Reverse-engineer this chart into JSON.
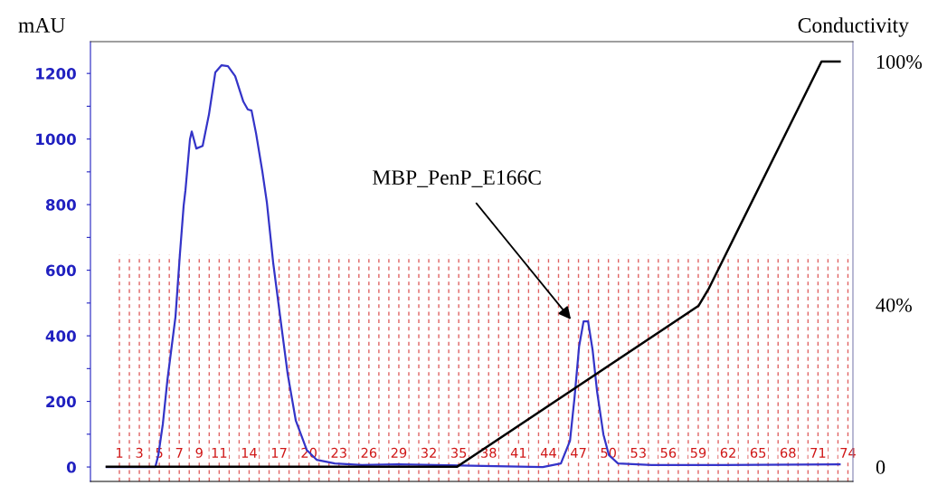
{
  "chart_data": {
    "type": "line",
    "ylabel": "mAU",
    "y2label": "Conductivity",
    "xlim": [
      -1.9,
      74.5
    ],
    "ylim": [
      -44,
      1297
    ],
    "yticks": [
      0,
      {
        "value": 100,
        "label": null
      },
      200,
      {
        "value": 300,
        "label": null
      },
      400,
      {
        "value": 500,
        "label": null
      },
      600,
      {
        "value": 700,
        "label": null
      },
      800,
      {
        "value": 900,
        "label": null
      },
      1000,
      {
        "value": 1100,
        "label": null
      },
      1200
    ],
    "y2lim": [
      -3.6,
      104.9
    ],
    "y2ticks": [
      0,
      {
        "value": 40,
        "label": "40%"
      },
      {
        "value": 100,
        "label": "100%"
      }
    ],
    "tick_labels": "y",
    "grid": false,
    "legend": false,
    "marker": "none",
    "line_style": "solid",
    "series": [
      {
        "color": "#3434c8",
        "x": [
          -0.27,
          4.6,
          4.9,
          5.35,
          5.81,
          6.62,
          7.07,
          7.44,
          7.62,
          8.07,
          8.25,
          8.71,
          9.34,
          9.98,
          10.61,
          11.24,
          11.88,
          12.6,
          13.42,
          13.87,
          14.24,
          14.69,
          15.32,
          15.78,
          16.41,
          17.23,
          17.86,
          18.68,
          19.77,
          20.76,
          22.58,
          25.3,
          28.92,
          32.55,
          43.43,
          45.24,
          46.15,
          46.6,
          47.06,
          47.51,
          47.96,
          48.42,
          48.87,
          49.5,
          50.05,
          50.96,
          54.31,
          61.56,
          73.17
        ],
        "values": [
          0,
          0,
          36,
          130,
          265,
          458,
          651,
          797,
          844,
          999,
          1023,
          971,
          979,
          1076,
          1203,
          1225,
          1222,
          1192,
          1114,
          1090,
          1087,
          1018,
          902,
          806,
          623,
          430,
          284,
          141,
          52,
          22,
          11,
          6,
          8,
          6,
          0,
          11,
          80,
          210,
          367,
          444,
          444,
          356,
          229,
          99,
          36,
          11,
          6,
          6,
          8
        ]
      },
      {
        "color": "#000000",
        "axis": "y2",
        "x": [
          -0.27,
          34.82,
          59.02,
          60.02,
          71.35,
          73.17
        ],
        "values": [
          0,
          0,
          39.7,
          43.8,
          100,
          100
        ]
      }
    ],
    "annotations": [
      {
        "text": "MBP_PenP_E166C",
        "x": 46.4,
        "y": 444
      }
    ],
    "ref_lines": [
      {
        "axis": "x",
        "value": 1,
        "label": "1",
        "color": "#e06464",
        "line_style": "dashed"
      },
      {
        "axis": "x",
        "value": 2,
        "label": null,
        "color": "#e06464",
        "line_style": "dashed"
      },
      {
        "axis": "x",
        "value": 3,
        "label": "3",
        "color": "#e06464",
        "line_style": "dashed"
      },
      {
        "axis": "x",
        "value": 4,
        "label": null,
        "color": "#e06464",
        "line_style": "dashed"
      },
      {
        "axis": "x",
        "value": 5,
        "label": "5",
        "color": "#e06464",
        "line_style": "dashed"
      },
      {
        "axis": "x",
        "value": 6,
        "label": null,
        "color": "#e06464",
        "line_style": "dashed"
      },
      {
        "axis": "x",
        "value": 7,
        "label": "7",
        "color": "#e06464",
        "line_style": "dashed"
      },
      {
        "axis": "x",
        "value": 8,
        "label": null,
        "color": "#e06464",
        "line_style": "dashed"
      },
      {
        "axis": "x",
        "value": 9,
        "label": "9",
        "color": "#e06464",
        "line_style": "dashed"
      },
      {
        "axis": "x",
        "value": 10,
        "label": null,
        "color": "#e06464",
        "line_style": "dashed"
      },
      {
        "axis": "x",
        "value": 11,
        "label": "11",
        "color": "#e06464",
        "line_style": "dashed"
      },
      {
        "axis": "x",
        "value": 12,
        "label": null,
        "color": "#e06464",
        "line_style": "dashed"
      },
      {
        "axis": "x",
        "value": 13,
        "label": null,
        "color": "#e06464",
        "line_style": "dashed"
      },
      {
        "axis": "x",
        "value": 14,
        "label": "14",
        "color": "#e06464",
        "line_style": "dashed"
      },
      {
        "axis": "x",
        "value": 15,
        "label": null,
        "color": "#e06464",
        "line_style": "dashed"
      },
      {
        "axis": "x",
        "value": 16,
        "label": null,
        "color": "#e06464",
        "line_style": "dashed"
      },
      {
        "axis": "x",
        "value": 17,
        "label": "17",
        "color": "#e06464",
        "line_style": "dashed"
      },
      {
        "axis": "x",
        "value": 18,
        "label": null,
        "color": "#e06464",
        "line_style": "dashed"
      },
      {
        "axis": "x",
        "value": 19,
        "label": null,
        "color": "#e06464",
        "line_style": "dashed"
      },
      {
        "axis": "x",
        "value": 20,
        "label": "20",
        "color": "#e06464",
        "line_style": "dashed"
      },
      {
        "axis": "x",
        "value": 21,
        "label": null,
        "color": "#e06464",
        "line_style": "dashed"
      },
      {
        "axis": "x",
        "value": 22,
        "label": null,
        "color": "#e06464",
        "line_style": "dashed"
      },
      {
        "axis": "x",
        "value": 23,
        "label": "23",
        "color": "#e06464",
        "line_style": "dashed"
      },
      {
        "axis": "x",
        "value": 24,
        "label": null,
        "color": "#e06464",
        "line_style": "dashed"
      },
      {
        "axis": "x",
        "value": 25,
        "label": null,
        "color": "#e06464",
        "line_style": "dashed"
      },
      {
        "axis": "x",
        "value": 26,
        "label": "26",
        "color": "#e06464",
        "line_style": "dashed"
      },
      {
        "axis": "x",
        "value": 27,
        "label": null,
        "color": "#e06464",
        "line_style": "dashed"
      },
      {
        "axis": "x",
        "value": 28,
        "label": null,
        "color": "#e06464",
        "line_style": "dashed"
      },
      {
        "axis": "x",
        "value": 29,
        "label": "29",
        "color": "#e06464",
        "line_style": "dashed"
      },
      {
        "axis": "x",
        "value": 30,
        "label": null,
        "color": "#e06464",
        "line_style": "dashed"
      },
      {
        "axis": "x",
        "value": 31,
        "label": null,
        "color": "#e06464",
        "line_style": "dashed"
      },
      {
        "axis": "x",
        "value": 32,
        "label": "32",
        "color": "#e06464",
        "line_style": "dashed"
      },
      {
        "axis": "x",
        "value": 33,
        "label": null,
        "color": "#e06464",
        "line_style": "dashed"
      },
      {
        "axis": "x",
        "value": 34,
        "label": null,
        "color": "#e06464",
        "line_style": "dashed"
      },
      {
        "axis": "x",
        "value": 35,
        "label": "35",
        "color": "#e06464",
        "line_style": "dashed"
      },
      {
        "axis": "x",
        "value": 36,
        "label": null,
        "color": "#e06464",
        "line_style": "dashed"
      },
      {
        "axis": "x",
        "value": 37,
        "label": null,
        "color": "#e06464",
        "line_style": "dashed"
      },
      {
        "axis": "x",
        "value": 38,
        "label": "38",
        "color": "#e06464",
        "line_style": "dashed"
      },
      {
        "axis": "x",
        "value": 39,
        "label": null,
        "color": "#e06464",
        "line_style": "dashed"
      },
      {
        "axis": "x",
        "value": 40,
        "label": null,
        "color": "#e06464",
        "line_style": "dashed"
      },
      {
        "axis": "x",
        "value": 41,
        "label": "41",
        "color": "#e06464",
        "line_style": "dashed"
      },
      {
        "axis": "x",
        "value": 42,
        "label": null,
        "color": "#e06464",
        "line_style": "dashed"
      },
      {
        "axis": "x",
        "value": 43,
        "label": null,
        "color": "#e06464",
        "line_style": "dashed"
      },
      {
        "axis": "x",
        "value": 44,
        "label": "44",
        "color": "#e06464",
        "line_style": "dashed"
      },
      {
        "axis": "x",
        "value": 45,
        "label": null,
        "color": "#e06464",
        "line_style": "dashed"
      },
      {
        "axis": "x",
        "value": 46,
        "label": null,
        "color": "#e06464",
        "line_style": "dashed"
      },
      {
        "axis": "x",
        "value": 47,
        "label": "47",
        "color": "#e06464",
        "line_style": "dashed"
      },
      {
        "axis": "x",
        "value": 48,
        "label": null,
        "color": "#e06464",
        "line_style": "dashed"
      },
      {
        "axis": "x",
        "value": 49,
        "label": null,
        "color": "#e06464",
        "line_style": "dashed"
      },
      {
        "axis": "x",
        "value": 50,
        "label": "50",
        "color": "#e06464",
        "line_style": "dashed"
      },
      {
        "axis": "x",
        "value": 51,
        "label": null,
        "color": "#e06464",
        "line_style": "dashed"
      },
      {
        "axis": "x",
        "value": 52,
        "label": null,
        "color": "#e06464",
        "line_style": "dashed"
      },
      {
        "axis": "x",
        "value": 53,
        "label": "53",
        "color": "#e06464",
        "line_style": "dashed"
      },
      {
        "axis": "x",
        "value": 54,
        "label": null,
        "color": "#e06464",
        "line_style": "dashed"
      },
      {
        "axis": "x",
        "value": 55,
        "label": null,
        "color": "#e06464",
        "line_style": "dashed"
      },
      {
        "axis": "x",
        "value": 56,
        "label": "56",
        "color": "#e06464",
        "line_style": "dashed"
      },
      {
        "axis": "x",
        "value": 57,
        "label": null,
        "color": "#e06464",
        "line_style": "dashed"
      },
      {
        "axis": "x",
        "value": 58,
        "label": null,
        "color": "#e06464",
        "line_style": "dashed"
      },
      {
        "axis": "x",
        "value": 59,
        "label": "59",
        "color": "#e06464",
        "line_style": "dashed"
      },
      {
        "axis": "x",
        "value": 60,
        "label": null,
        "color": "#e06464",
        "line_style": "dashed"
      },
      {
        "axis": "x",
        "value": 61,
        "label": null,
        "color": "#e06464",
        "line_style": "dashed"
      },
      {
        "axis": "x",
        "value": 62,
        "label": "62",
        "color": "#e06464",
        "line_style": "dashed"
      },
      {
        "axis": "x",
        "value": 63,
        "label": null,
        "color": "#e06464",
        "line_style": "dashed"
      },
      {
        "axis": "x",
        "value": 64,
        "label": null,
        "color": "#e06464",
        "line_style": "dashed"
      },
      {
        "axis": "x",
        "value": 65,
        "label": "65",
        "color": "#e06464",
        "line_style": "dashed"
      },
      {
        "axis": "x",
        "value": 66,
        "label": null,
        "color": "#e06464",
        "line_style": "dashed"
      },
      {
        "axis": "x",
        "value": 67,
        "label": null,
        "color": "#e06464",
        "line_style": "dashed"
      },
      {
        "axis": "x",
        "value": 68,
        "label": "68",
        "color": "#e06464",
        "line_style": "dashed"
      },
      {
        "axis": "x",
        "value": 69,
        "label": null,
        "color": "#e06464",
        "line_style": "dashed"
      },
      {
        "axis": "x",
        "value": 70,
        "label": null,
        "color": "#e06464",
        "line_style": "dashed"
      },
      {
        "axis": "x",
        "value": 71,
        "label": "71",
        "color": "#e06464",
        "line_style": "dashed"
      },
      {
        "axis": "x",
        "value": 72,
        "label": null,
        "color": "#e06464",
        "line_style": "dashed"
      },
      {
        "axis": "x",
        "value": 73,
        "label": null,
        "color": "#e06464",
        "line_style": "dashed"
      },
      {
        "axis": "x",
        "value": 74,
        "label": "74",
        "color": "#e06464",
        "line_style": "dashed"
      }
    ]
  }
}
